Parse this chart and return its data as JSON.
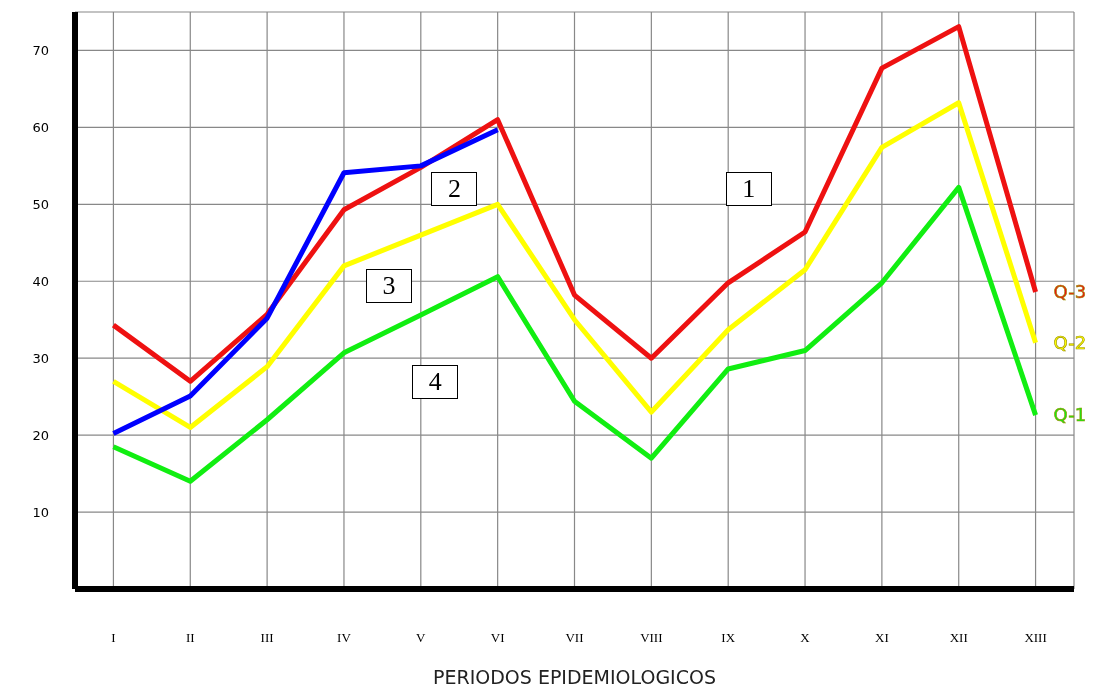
{
  "chart_data": {
    "type": "line",
    "xlabel": "PERIODOS EPIDEMIOLOGICOS",
    "categories": [
      "I",
      "II",
      "III",
      "IV",
      "V",
      "VI",
      "VII",
      "VIII",
      "IX",
      "X",
      "XI",
      "XII",
      "XIII"
    ],
    "series": [
      {
        "name": "Q-3",
        "color": "#ee1111",
        "values": [
          34.3,
          27,
          35.7,
          49.3,
          54.8,
          61,
          38.2,
          30,
          39.8,
          46.4,
          67.7,
          73.1,
          38.6
        ]
      },
      {
        "name": "Q-2",
        "color": "#ffff00",
        "values": [
          27,
          21,
          28.9,
          42,
          46,
          50,
          35,
          23,
          33.7,
          41.5,
          57.4,
          63.2,
          32
        ]
      },
      {
        "name": "Q-1",
        "color": "#11ee11",
        "values": [
          18.5,
          14,
          22,
          30.7,
          35.6,
          40.6,
          24.4,
          17,
          28.6,
          31,
          39.8,
          52.2,
          22.6
        ]
      },
      {
        "color": "#0000ff",
        "values": [
          20.2,
          25.1,
          35.2,
          54.1,
          55,
          59.7,
          null,
          null,
          null,
          null,
          null,
          null,
          null
        ]
      }
    ],
    "annotations": [
      "1",
      "2",
      "3",
      "4"
    ],
    "ylim": [
      0,
      75
    ],
    "yticks": [
      10,
      20,
      30,
      40,
      50,
      60,
      70
    ],
    "grid": true,
    "legend": false,
    "marker": "none",
    "line_style": "solid"
  }
}
